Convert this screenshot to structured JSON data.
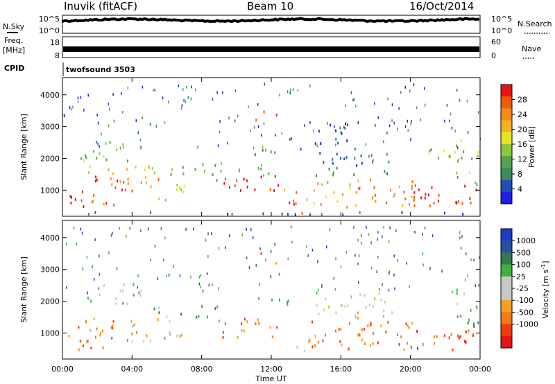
{
  "header": {
    "station": "Inuvik (fitACF)",
    "beam": "Beam 10",
    "date": "16/Oct/2014"
  },
  "noise_panel": {
    "left_label": "N.Sky",
    "left_ticks": [
      "10^5",
      "10^0"
    ],
    "right_label": "N.Search",
    "right_ticks": [
      "10^5",
      "10^0"
    ]
  },
  "freq_panel": {
    "left_label_line1": "Freq.",
    "left_label_line2": "[MHz]",
    "left_ticks": [
      "18",
      "8"
    ],
    "right_label": "Nave",
    "right_ticks": [
      "60",
      "0"
    ]
  },
  "cpid_panel": {
    "label": "CPID",
    "program": "twofsound 3503"
  },
  "colors": {
    "power": [
      "#1e1ee6",
      "#1f4fb4",
      "#3a8c5a",
      "#55a34a",
      "#8cc83c",
      "#e6e61e",
      "#f5b31e",
      "#f58c14",
      "#f05a0a",
      "#e61414"
    ],
    "velocity": [
      "#1e3cc8",
      "#2850a0",
      "#37784b",
      "#3cb43c",
      "#c8c8c8",
      "#c8c8c8",
      "#f5a01e",
      "#f57814",
      "#f03c0a",
      "#e61414"
    ]
  },
  "chart_data": [
    {
      "type": "heatmap",
      "name": "power",
      "xlabel": "",
      "ylabel": "Slant Range [km]",
      "x_tick_labels": [
        "00:00",
        "04:00",
        "08:00",
        "12:00",
        "16:00",
        "20:00",
        "00:00"
      ],
      "y_tick_labels": [
        "1000",
        "2000",
        "3000",
        "4000"
      ],
      "ylim": [
        180,
        4540
      ],
      "xlim": [
        0,
        24
      ],
      "colorbar": {
        "label": "Power [dB]",
        "range": [
          0,
          32
        ],
        "tick_labels": [
          "28",
          "24",
          "20",
          "16",
          "12",
          "8",
          "4"
        ]
      },
      "echo_regions": [
        {
          "x0": 0.0,
          "x1": 1.2,
          "y0": 500,
          "y1": 1300,
          "level": 9
        },
        {
          "x0": 1.2,
          "x1": 3.5,
          "y0": 550,
          "y1": 1500,
          "level": 8
        },
        {
          "x0": 3.5,
          "x1": 5.5,
          "y0": 900,
          "y1": 1500,
          "level": 7
        },
        {
          "x0": 5.5,
          "x1": 7.0,
          "y0": 700,
          "y1": 1400,
          "level": 5
        },
        {
          "x0": 1.0,
          "x1": 5.0,
          "y0": 1550,
          "y1": 1850,
          "level": 5
        },
        {
          "x0": 1.0,
          "x1": 4.5,
          "y0": 1950,
          "y1": 2600,
          "level": 4
        },
        {
          "x0": 5.0,
          "x1": 9.0,
          "y0": 1500,
          "y1": 1900,
          "level": 3
        },
        {
          "x0": 8.8,
          "x1": 12.5,
          "y0": 900,
          "y1": 1500,
          "level": 9
        },
        {
          "x0": 9.0,
          "x1": 12.0,
          "y0": 1500,
          "y1": 1900,
          "level": 4
        },
        {
          "x0": 11.0,
          "x1": 12.3,
          "y0": 3200,
          "y1": 3550,
          "level": 9
        },
        {
          "x0": 11.0,
          "x1": 12.5,
          "y0": 2000,
          "y1": 2500,
          "level": 3
        },
        {
          "x0": 12.3,
          "x1": 14.0,
          "y0": 200,
          "y1": 700,
          "level": 9
        },
        {
          "x0": 12.5,
          "x1": 13.5,
          "y0": 700,
          "y1": 1100,
          "level": 7
        },
        {
          "x0": 14.0,
          "x1": 16.5,
          "y0": 500,
          "y1": 1300,
          "level": 6
        },
        {
          "x0": 16.5,
          "x1": 20.5,
          "y0": 500,
          "y1": 1400,
          "level": 7
        },
        {
          "x0": 14.5,
          "x1": 19.0,
          "y0": 1500,
          "y1": 2300,
          "level": 2
        },
        {
          "x0": 14.5,
          "x1": 17.0,
          "y0": 2500,
          "y1": 3200,
          "level": 1
        },
        {
          "x0": 20.0,
          "x1": 24.0,
          "y0": 500,
          "y1": 1200,
          "level": 9
        },
        {
          "x0": 21.0,
          "x1": 23.0,
          "y0": 1900,
          "y1": 2400,
          "level": 4
        },
        {
          "x0": 22.5,
          "x1": 24.0,
          "y0": 1200,
          "y1": 2600,
          "level": 4
        },
        {
          "x0": 0.0,
          "x1": 24.0,
          "y0": 180,
          "y1": 350,
          "level": 1
        }
      ]
    },
    {
      "type": "heatmap",
      "name": "velocity",
      "xlabel": "Time UT",
      "ylabel": "Slant Range [km]",
      "x_tick_labels": [
        "00:00",
        "04:00",
        "08:00",
        "12:00",
        "16:00",
        "20:00",
        "00:00"
      ],
      "y_tick_labels": [
        "1000",
        "2000",
        "3000",
        "4000"
      ],
      "ylim": [
        180,
        4540
      ],
      "xlim": [
        0,
        24
      ],
      "colorbar": {
        "label": "Velocity [m s",
        "label_sup": "-1",
        "label_close": "]",
        "tick_labels": [
          "1000",
          "500",
          "100",
          "25",
          "-25",
          "-100",
          "-500",
          "-1000"
        ]
      },
      "echo_regions": [
        {
          "x0": 0.0,
          "x1": 3.5,
          "y0": 500,
          "y1": 1500,
          "level": 7
        },
        {
          "x0": 3.5,
          "x1": 7.0,
          "y0": 700,
          "y1": 1500,
          "level": 6
        },
        {
          "x0": 1.0,
          "x1": 4.5,
          "y0": 1950,
          "y1": 2600,
          "level": 4
        },
        {
          "x0": 5.0,
          "x1": 9.0,
          "y0": 1500,
          "y1": 1900,
          "level": 3
        },
        {
          "x0": 8.8,
          "x1": 12.5,
          "y0": 900,
          "y1": 1500,
          "level": 7
        },
        {
          "x0": 11.0,
          "x1": 12.3,
          "y0": 3200,
          "y1": 3550,
          "level": 7
        },
        {
          "x0": 11.0,
          "x1": 13.0,
          "y0": 1800,
          "y1": 2200,
          "level": 4
        },
        {
          "x0": 12.3,
          "x1": 14.0,
          "y0": 200,
          "y1": 700,
          "level": 4
        },
        {
          "x0": 14.0,
          "x1": 20.5,
          "y0": 500,
          "y1": 1400,
          "level": 7
        },
        {
          "x0": 14.5,
          "x1": 19.0,
          "y0": 1500,
          "y1": 2300,
          "level": 5
        },
        {
          "x0": 20.0,
          "x1": 24.0,
          "y0": 500,
          "y1": 1200,
          "level": 8
        },
        {
          "x0": 22.5,
          "x1": 24.0,
          "y0": 1200,
          "y1": 2600,
          "level": 3
        }
      ]
    }
  ]
}
